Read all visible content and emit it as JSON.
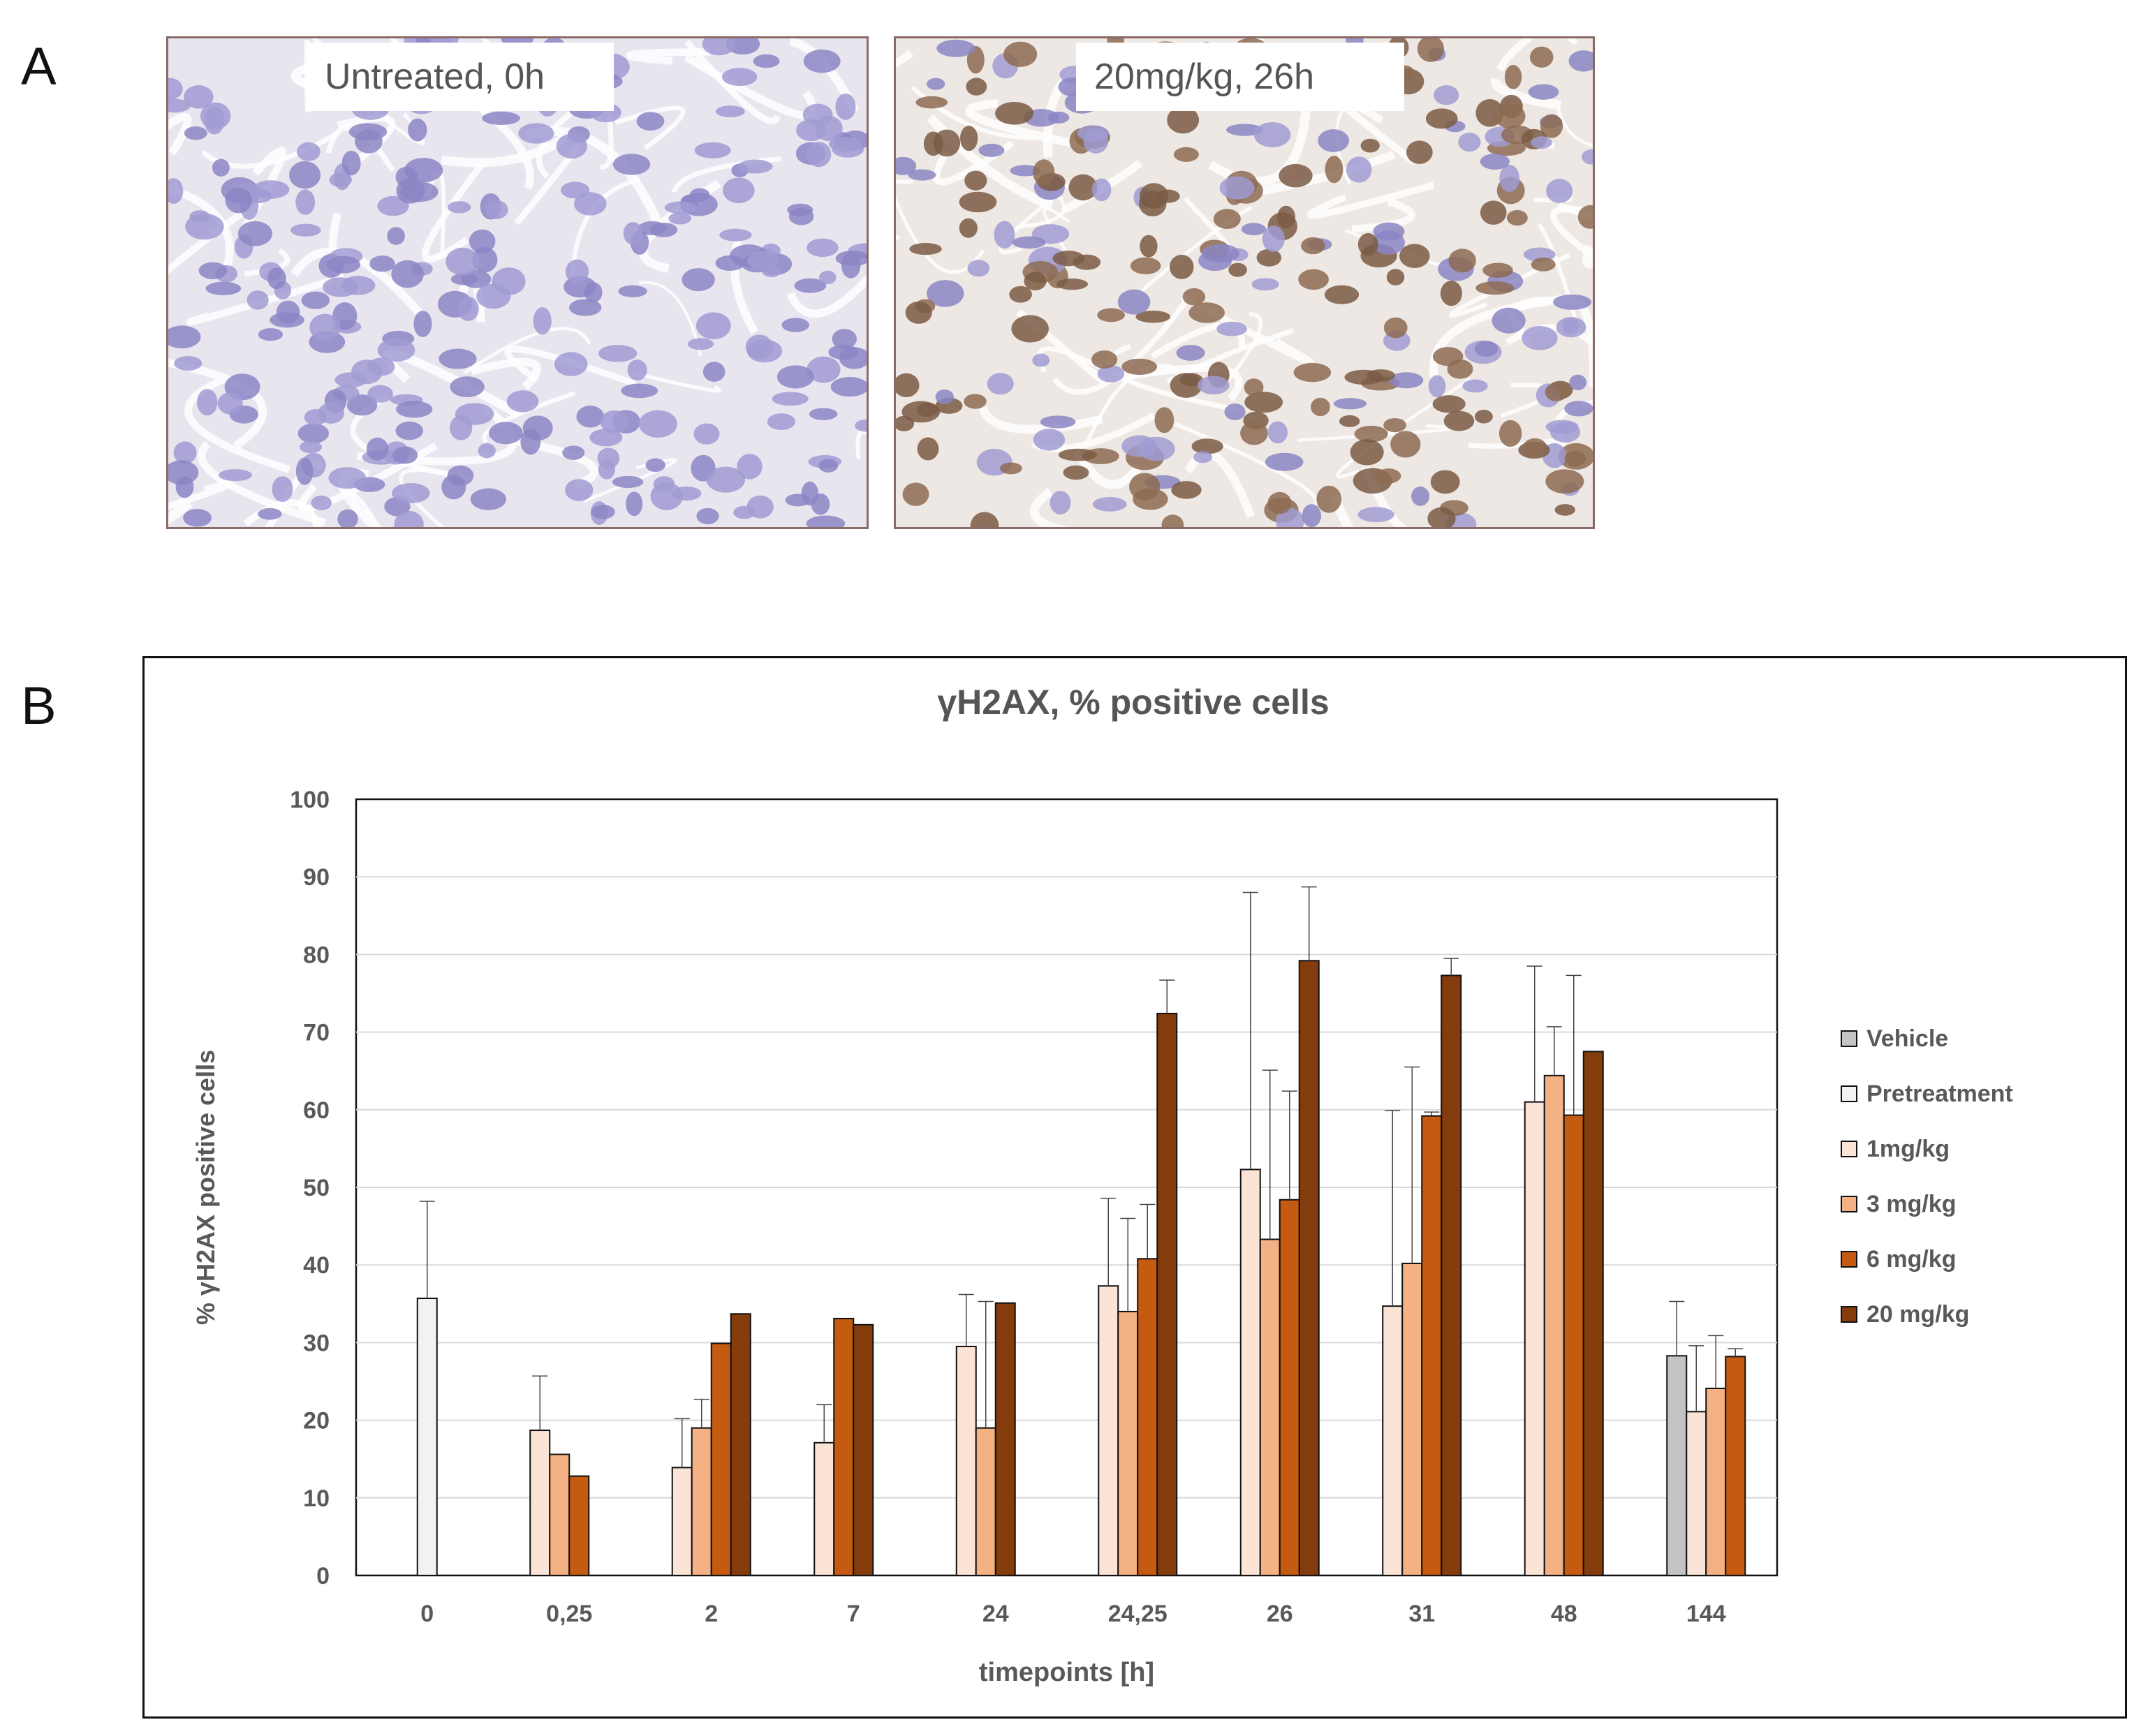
{
  "panels": {
    "a_label": "A",
    "b_label": "B"
  },
  "micrographs": [
    {
      "label": "Untreated, 0h",
      "stain": "hematoxylin-only"
    },
    {
      "label": "20mg/kg, 26h",
      "stain": "gammaH2AX-positive-brown"
    }
  ],
  "colors": {
    "Vehicle": "#c4c4c4",
    "Pretreatment": "#f2f2f2",
    "1mg/kg": "#fbe4d5",
    "3 mg/kg": "#f4b183",
    "6 mg/kg": "#c55a11",
    "20 mg/kg": "#843c0c"
  },
  "chart_data": {
    "type": "bar",
    "title": "γH2AX, % positive cells",
    "xlabel": "timepoints [h]",
    "ylabel": "% γH2AX positive cells",
    "ylim": [
      0,
      100
    ],
    "yticks": [
      "0",
      "10",
      "20",
      "30",
      "40",
      "50",
      "60",
      "70",
      "80",
      "90",
      "100"
    ],
    "categories": [
      "0",
      "0,25",
      "2",
      "7",
      "24",
      "24,25",
      "26",
      "31",
      "48",
      "144"
    ],
    "grid": "horizontal",
    "legend": "right",
    "error_bars": "upper",
    "series": [
      {
        "name": "Vehicle",
        "values": [
          null,
          null,
          null,
          null,
          null,
          null,
          null,
          null,
          null,
          28.3
        ],
        "errors": [
          null,
          null,
          null,
          null,
          null,
          null,
          null,
          null,
          null,
          7
        ]
      },
      {
        "name": "Pretreatment",
        "values": [
          35.7,
          null,
          null,
          null,
          null,
          null,
          null,
          null,
          null,
          null
        ],
        "errors": [
          12.5,
          null,
          null,
          null,
          null,
          null,
          null,
          null,
          null,
          null
        ]
      },
      {
        "name": "1mg/kg",
        "values": [
          null,
          18.7,
          13.9,
          17.1,
          29.5,
          37.3,
          52.3,
          34.7,
          61.0,
          21.1
        ],
        "errors": [
          null,
          7,
          6.3,
          4.9,
          6.7,
          11.3,
          35.7,
          25.2,
          17.5,
          8.5
        ]
      },
      {
        "name": "3 mg/kg",
        "values": [
          null,
          15.6,
          19.0,
          null,
          19.0,
          34.0,
          43.3,
          40.2,
          64.4,
          24.1
        ],
        "errors": [
          null,
          null,
          3.7,
          null,
          16.3,
          12.0,
          21.8,
          25.3,
          6.3,
          6.8
        ]
      },
      {
        "name": "6 mg/kg",
        "values": [
          null,
          12.8,
          29.9,
          33.1,
          null,
          40.8,
          48.4,
          59.2,
          59.3,
          28.2
        ],
        "errors": [
          null,
          null,
          null,
          null,
          null,
          7,
          14,
          0.5,
          18,
          1
        ]
      },
      {
        "name": "20 mg/kg",
        "values": [
          null,
          null,
          33.7,
          32.3,
          35.1,
          72.4,
          79.2,
          77.3,
          67.5,
          null
        ],
        "errors": [
          null,
          null,
          null,
          null,
          null,
          4.3,
          9.5,
          2.2,
          null,
          null
        ]
      }
    ]
  }
}
